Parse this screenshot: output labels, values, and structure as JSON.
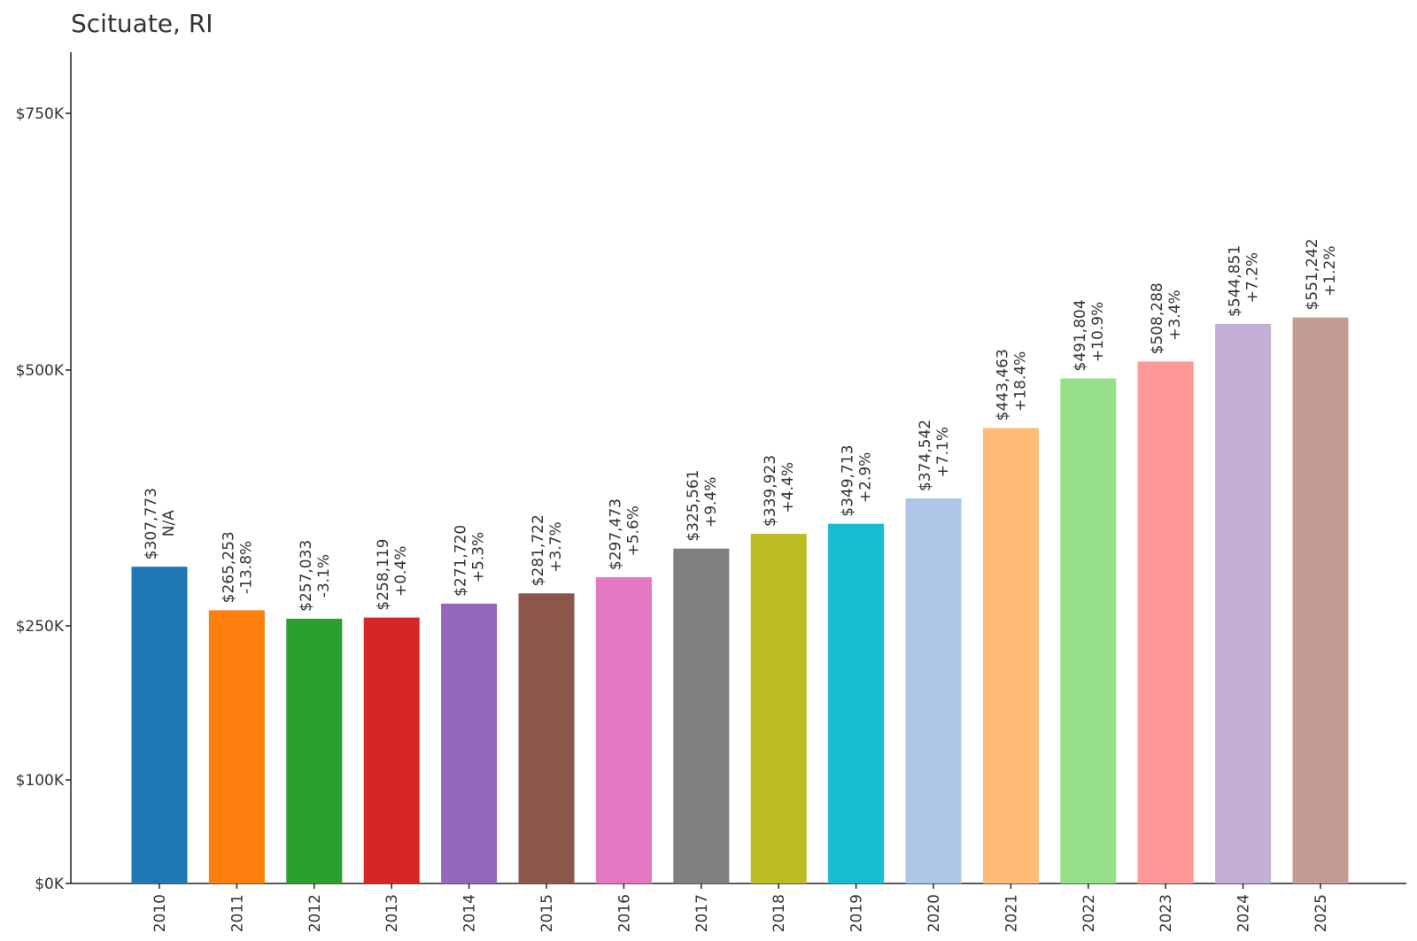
{
  "chart_data": {
    "type": "bar",
    "title": "Scituate, RI",
    "xlabel": "",
    "ylabel": "",
    "categories": [
      "2010",
      "2011",
      "2012",
      "2013",
      "2014",
      "2015",
      "2016",
      "2017",
      "2018",
      "2019",
      "2020",
      "2021",
      "2022",
      "2023",
      "2024",
      "2025"
    ],
    "values": [
      307773,
      265253,
      257033,
      258119,
      271720,
      281722,
      297473,
      325561,
      339923,
      349713,
      374542,
      443463,
      491804,
      508288,
      544851,
      551242
    ],
    "value_labels": [
      "$307,773",
      "$265,253",
      "$257,033",
      "$258,119",
      "$271,720",
      "$281,722",
      "$297,473",
      "$325,561",
      "$339,923",
      "$349,713",
      "$374,542",
      "$443,463",
      "$491,804",
      "$508,288",
      "$544,851",
      "$551,242"
    ],
    "change_labels": [
      "N/A",
      "-13.8%",
      "-3.1%",
      "+0.4%",
      "+5.3%",
      "+3.7%",
      "+5.6%",
      "+9.4%",
      "+4.4%",
      "+2.9%",
      "+7.1%",
      "+18.4%",
      "+10.9%",
      "+3.4%",
      "+7.2%",
      "+1.2%"
    ],
    "colors": [
      "#1f77b4",
      "#ff7f0e",
      "#2ca02c",
      "#d62728",
      "#9467bd",
      "#8c564b",
      "#e377c2",
      "#7f7f7f",
      "#bcbd22",
      "#17becf",
      "#aec7e8",
      "#ffbb78",
      "#98df8a",
      "#ff9896",
      "#c5b0d5",
      "#c49c94"
    ],
    "y_ticks": [
      {
        "value": 0,
        "label": "$0K"
      },
      {
        "value": 100000,
        "label": "$100K"
      },
      {
        "value": 250000,
        "label": "$250K"
      },
      {
        "value": 500000,
        "label": "$500K"
      },
      {
        "value": 750000,
        "label": "$750K"
      }
    ],
    "ylim": [
      0,
      810000
    ],
    "grid": false,
    "legend": "none"
  }
}
